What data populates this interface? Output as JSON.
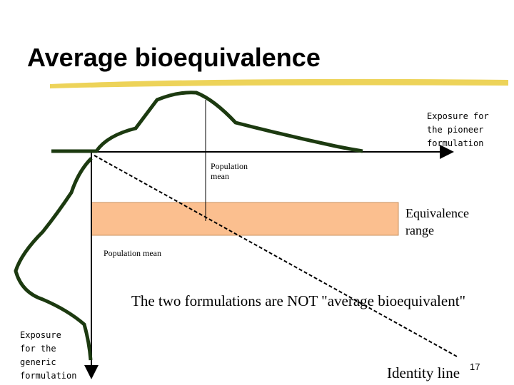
{
  "title": "Average bioequivalence",
  "labels": {
    "pioneer": [
      "Exposure for",
      "the pioneer",
      "formulation"
    ],
    "population_mean_top": [
      "Population",
      "mean"
    ],
    "equivalence": [
      "Equivalence",
      "range"
    ],
    "population_mean_left": "Population mean",
    "statement": "The two formulations are NOT \"average bioequivalent\"",
    "generic": [
      "Exposure",
      "for the",
      "generic",
      "formulation"
    ],
    "identity": "Identity line",
    "page_number": "17"
  }
}
